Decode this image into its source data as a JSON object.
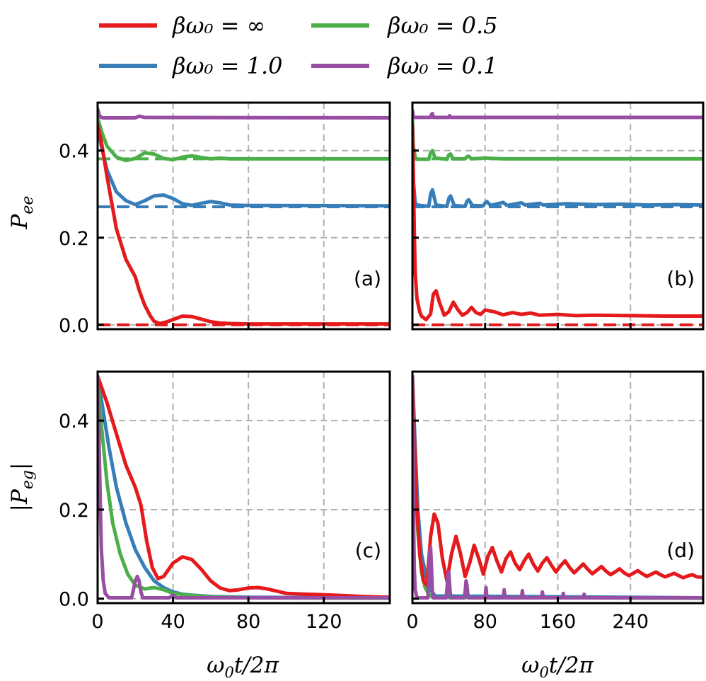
{
  "colors": {
    "inf": "#e41a1c",
    "b1": "#377eb8",
    "b05": "#4daf4a",
    "b01": "#984ea3"
  },
  "legend": {
    "entries": [
      {
        "key": "inf",
        "label": "βω₀ = ∞"
      },
      {
        "key": "b05",
        "label": "βω₀ = 0.5"
      },
      {
        "key": "b1",
        "label": "βω₀ = 1.0"
      },
      {
        "key": "b01",
        "label": "βω₀ = 0.1"
      }
    ]
  },
  "chart_data": [
    {
      "type": "line",
      "panel": "(a)",
      "ylabel": "P_ee",
      "xlim": [
        0,
        155
      ],
      "ylim": [
        -0.01,
        0.51
      ],
      "yticks": [
        "0.0",
        "0.2",
        "0.4"
      ],
      "ytick_values": [
        0.0,
        0.2,
        0.4
      ],
      "xticks": [],
      "xtick_values": [
        40,
        80,
        120
      ],
      "grid": true,
      "series": [
        {
          "key": "b01",
          "x": [
            0,
            1,
            2,
            3,
            20,
            22,
            25,
            155
          ],
          "y": [
            0.495,
            0.48,
            0.476,
            0.475,
            0.475,
            0.479,
            0.476,
            0.475
          ]
        },
        {
          "key": "b05",
          "x": [
            0,
            2,
            5,
            10,
            15,
            20,
            25,
            30,
            35,
            40,
            45,
            50,
            55,
            60,
            65,
            70,
            155
          ],
          "y": [
            0.475,
            0.445,
            0.41,
            0.385,
            0.377,
            0.382,
            0.395,
            0.392,
            0.382,
            0.379,
            0.385,
            0.388,
            0.384,
            0.381,
            0.383,
            0.381,
            0.381
          ]
        },
        {
          "key": "b1",
          "x": [
            0,
            2,
            5,
            10,
            15,
            20,
            25,
            30,
            35,
            40,
            45,
            50,
            55,
            60,
            65,
            70,
            80,
            155
          ],
          "y": [
            0.455,
            0.41,
            0.355,
            0.305,
            0.285,
            0.276,
            0.285,
            0.296,
            0.298,
            0.29,
            0.278,
            0.274,
            0.279,
            0.283,
            0.28,
            0.275,
            0.274,
            0.273
          ]
        },
        {
          "key": "inf",
          "x": [
            0,
            2,
            5,
            10,
            15,
            20,
            22,
            25,
            28,
            30,
            33,
            36,
            40,
            45,
            50,
            55,
            60,
            65,
            70,
            80,
            155
          ],
          "y": [
            0.46,
            0.42,
            0.34,
            0.22,
            0.15,
            0.11,
            0.08,
            0.045,
            0.02,
            0.008,
            0.003,
            0.006,
            0.012,
            0.02,
            0.019,
            0.013,
            0.007,
            0.004,
            0.003,
            0.002,
            0.002
          ]
        }
      ],
      "dashed": [
        {
          "key": "b05",
          "y": 0.381
        },
        {
          "key": "b1",
          "y": 0.271
        },
        {
          "key": "inf",
          "y": 0.0
        }
      ]
    },
    {
      "type": "line",
      "panel": "(b)",
      "ylabel": "",
      "xlim": [
        0,
        320
      ],
      "ylim": [
        -0.01,
        0.51
      ],
      "yticks": [],
      "ytick_values": [
        0.0,
        0.2,
        0.4
      ],
      "xticks": [],
      "xtick_values": [
        80,
        160,
        240
      ],
      "grid": true,
      "series": [
        {
          "key": "b01",
          "x": [
            0,
            1,
            2,
            20,
            21,
            22,
            23,
            40,
            41,
            42,
            320
          ],
          "y": [
            0.492,
            0.478,
            0.476,
            0.476,
            0.483,
            0.485,
            0.476,
            0.476,
            0.48,
            0.476,
            0.476
          ]
        },
        {
          "key": "b05",
          "x": [
            0,
            1,
            3,
            5,
            18,
            20,
            22,
            25,
            38,
            40,
            42,
            45,
            58,
            60,
            62,
            65,
            80,
            100,
            320
          ],
          "y": [
            0.47,
            0.41,
            0.385,
            0.38,
            0.38,
            0.395,
            0.4,
            0.383,
            0.38,
            0.39,
            0.392,
            0.381,
            0.381,
            0.386,
            0.387,
            0.381,
            0.383,
            0.381,
            0.381
          ]
        },
        {
          "key": "b1",
          "x": [
            0,
            1,
            3,
            5,
            18,
            20,
            22,
            26,
            38,
            40,
            42,
            46,
            58,
            60,
            62,
            66,
            78,
            80,
            82,
            86,
            100,
            104,
            120,
            124,
            140,
            144,
            170,
            200,
            230,
            260,
            290,
            320
          ],
          "y": [
            0.45,
            0.33,
            0.28,
            0.275,
            0.272,
            0.3,
            0.31,
            0.275,
            0.272,
            0.29,
            0.296,
            0.274,
            0.272,
            0.284,
            0.287,
            0.274,
            0.273,
            0.28,
            0.283,
            0.274,
            0.281,
            0.274,
            0.28,
            0.275,
            0.279,
            0.275,
            0.278,
            0.276,
            0.277,
            0.275,
            0.276,
            0.275
          ]
        },
        {
          "key": "inf",
          "x": [
            0,
            1,
            2,
            3,
            5,
            8,
            10,
            15,
            20,
            23,
            26,
            30,
            35,
            40,
            45,
            50,
            55,
            60,
            65,
            70,
            75,
            80,
            90,
            100,
            110,
            120,
            130,
            140,
            160,
            180,
            200,
            240,
            280,
            320
          ],
          "y": [
            0.46,
            0.35,
            0.22,
            0.12,
            0.06,
            0.03,
            0.02,
            0.012,
            0.025,
            0.07,
            0.078,
            0.05,
            0.022,
            0.03,
            0.052,
            0.035,
            0.022,
            0.028,
            0.04,
            0.028,
            0.024,
            0.034,
            0.03,
            0.023,
            0.028,
            0.024,
            0.027,
            0.022,
            0.024,
            0.021,
            0.022,
            0.021,
            0.02,
            0.02
          ]
        }
      ],
      "dashed": [
        {
          "key": "b05",
          "y": 0.381
        },
        {
          "key": "b1",
          "y": 0.271
        },
        {
          "key": "inf",
          "y": 0.0
        }
      ]
    },
    {
      "type": "line",
      "panel": "(c)",
      "ylabel": "|P_eg|",
      "xlabel": "ω₀t/2π",
      "xlim": [
        0,
        155
      ],
      "ylim": [
        -0.01,
        0.51
      ],
      "yticks": [
        "0.0",
        "0.2",
        "0.4"
      ],
      "ytick_values": [
        0.0,
        0.2,
        0.4
      ],
      "xticks": [
        "0",
        "40",
        "80",
        "120"
      ],
      "xtick_values": [
        0,
        40,
        80,
        120
      ],
      "grid": true,
      "series": [
        {
          "key": "b1",
          "x": [
            0,
            3,
            6,
            10,
            15,
            20,
            25,
            30,
            35,
            40,
            45,
            50,
            60,
            80,
            155
          ],
          "y": [
            0.5,
            0.42,
            0.34,
            0.25,
            0.17,
            0.11,
            0.07,
            0.04,
            0.025,
            0.015,
            0.01,
            0.008,
            0.005,
            0.003,
            0.002
          ]
        },
        {
          "key": "b05",
          "x": [
            0,
            2,
            5,
            8,
            12,
            16,
            20,
            25,
            30,
            35,
            40,
            50,
            60,
            80,
            155
          ],
          "y": [
            0.5,
            0.39,
            0.26,
            0.17,
            0.1,
            0.055,
            0.03,
            0.022,
            0.025,
            0.02,
            0.012,
            0.007,
            0.004,
            0.002,
            0.001
          ]
        },
        {
          "key": "inf",
          "x": [
            0,
            5,
            10,
            15,
            20,
            23,
            26,
            29,
            32,
            35,
            40,
            45,
            50,
            55,
            60,
            65,
            70,
            75,
            80,
            85,
            90,
            95,
            100,
            110,
            120,
            130,
            140,
            155
          ],
          "y": [
            0.5,
            0.44,
            0.37,
            0.3,
            0.25,
            0.21,
            0.13,
            0.07,
            0.045,
            0.05,
            0.08,
            0.094,
            0.088,
            0.066,
            0.04,
            0.024,
            0.018,
            0.02,
            0.024,
            0.025,
            0.022,
            0.017,
            0.012,
            0.01,
            0.009,
            0.007,
            0.005,
            0.003
          ]
        },
        {
          "key": "b01",
          "x": [
            0,
            0.5,
            1,
            1.5,
            2,
            3,
            4,
            6,
            18,
            19,
            20,
            21,
            22,
            23,
            24,
            38,
            40,
            42,
            155
          ],
          "y": [
            0.5,
            0.42,
            0.3,
            0.2,
            0.11,
            0.04,
            0.012,
            0.002,
            0.002,
            0.02,
            0.04,
            0.05,
            0.04,
            0.015,
            0.002,
            0.002,
            0.008,
            0.002,
            0.002
          ]
        }
      ]
    },
    {
      "type": "line",
      "panel": "(d)",
      "ylabel": "",
      "xlabel": "ω₀t/2π",
      "xlim": [
        0,
        320
      ],
      "ylim": [
        -0.01,
        0.51
      ],
      "yticks": [],
      "ytick_values": [
        0.0,
        0.2,
        0.4
      ],
      "xticks": [
        "0",
        "80",
        "160",
        "240"
      ],
      "xtick_values": [
        0,
        80,
        160,
        240
      ],
      "grid": true,
      "series": [
        {
          "key": "b05",
          "x": [
            0,
            3,
            6,
            10,
            14,
            18,
            22,
            320
          ],
          "y": [
            0.5,
            0.3,
            0.15,
            0.06,
            0.025,
            0.01,
            0.003,
            0.001
          ]
        },
        {
          "key": "b1",
          "x": [
            0,
            3,
            6,
            10,
            15,
            20,
            25,
            320
          ],
          "y": [
            0.5,
            0.34,
            0.2,
            0.1,
            0.05,
            0.02,
            0.006,
            0.002
          ]
        },
        {
          "key": "inf",
          "x": [
            0,
            1,
            2,
            3,
            5,
            8,
            12,
            16,
            20,
            24,
            28,
            33,
            38,
            43,
            48,
            53,
            58,
            63,
            68,
            73,
            78,
            83,
            88,
            93,
            98,
            103,
            108,
            113,
            118,
            123,
            128,
            133,
            138,
            143,
            148,
            153,
            158,
            163,
            168,
            173,
            178,
            183,
            188,
            193,
            198,
            203,
            208,
            213,
            218,
            223,
            228,
            233,
            238,
            243,
            248,
            253,
            258,
            263,
            268,
            273,
            278,
            283,
            288,
            293,
            298,
            303,
            308,
            313,
            320
          ],
          "y": [
            0.5,
            0.44,
            0.37,
            0.3,
            0.2,
            0.1,
            0.04,
            0.03,
            0.14,
            0.19,
            0.17,
            0.09,
            0.04,
            0.1,
            0.14,
            0.1,
            0.05,
            0.08,
            0.12,
            0.09,
            0.055,
            0.095,
            0.115,
            0.085,
            0.06,
            0.09,
            0.105,
            0.08,
            0.065,
            0.085,
            0.1,
            0.078,
            0.062,
            0.08,
            0.092,
            0.075,
            0.06,
            0.074,
            0.085,
            0.07,
            0.058,
            0.068,
            0.078,
            0.066,
            0.056,
            0.064,
            0.072,
            0.062,
            0.054,
            0.06,
            0.067,
            0.058,
            0.052,
            0.057,
            0.063,
            0.056,
            0.05,
            0.055,
            0.06,
            0.054,
            0.049,
            0.053,
            0.057,
            0.052,
            0.047,
            0.051,
            0.054,
            0.049,
            0.048
          ]
        },
        {
          "key": "b01",
          "x": [
            0,
            0.5,
            1,
            1.5,
            2,
            3,
            5,
            17,
            18,
            19,
            20,
            21,
            22,
            23,
            37,
            38,
            39,
            40,
            41,
            42,
            57,
            58,
            59,
            60,
            61,
            62,
            80,
            81,
            82,
            100,
            101,
            102,
            120,
            121,
            122,
            142,
            143,
            144,
            165,
            166,
            167,
            188,
            189,
            190,
            320
          ],
          "y": [
            0.5,
            0.4,
            0.27,
            0.15,
            0.07,
            0.02,
            0.002,
            0.002,
            0.04,
            0.1,
            0.115,
            0.07,
            0.015,
            0.002,
            0.002,
            0.02,
            0.055,
            0.06,
            0.03,
            0.002,
            0.002,
            0.015,
            0.04,
            0.03,
            0.01,
            0.002,
            0.002,
            0.025,
            0.002,
            0.002,
            0.02,
            0.002,
            0.002,
            0.018,
            0.002,
            0.002,
            0.015,
            0.002,
            0.002,
            0.012,
            0.002,
            0.002,
            0.01,
            0.002,
            0.002
          ]
        }
      ]
    }
  ]
}
